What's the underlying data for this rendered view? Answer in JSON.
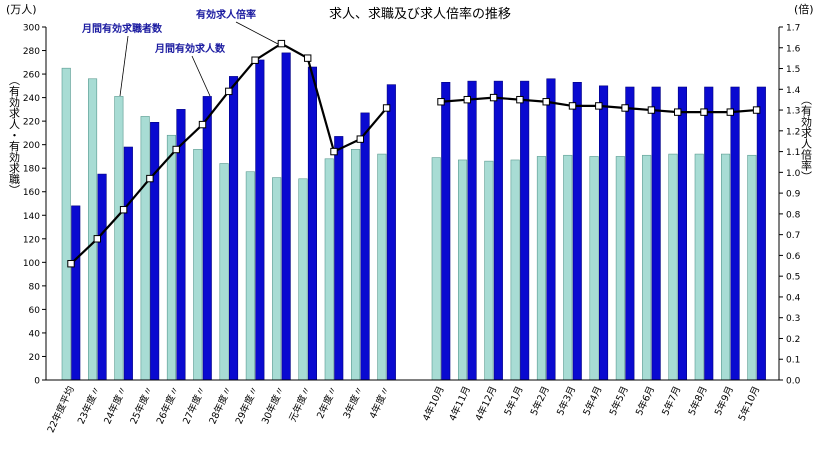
{
  "chart_data": {
    "type": "bar",
    "title": "求人、求職及び求人倍率の推移",
    "left_unit": "(万人)",
    "right_unit": "(倍)",
    "ylabel_left": "（有効求人・有効求職）",
    "ylabel_right": "（有効求人倍率）",
    "ylim_left": [
      0,
      300
    ],
    "ylim_right": [
      0.0,
      1.7
    ],
    "left_ticks": [
      "0",
      "20",
      "40",
      "60",
      "80",
      "100",
      "120",
      "140",
      "160",
      "180",
      "200",
      "220",
      "240",
      "260",
      "280",
      "300"
    ],
    "right_ticks": [
      "0.0",
      "0.1",
      "0.2",
      "0.3",
      "0.4",
      "0.5",
      "0.6",
      "0.7",
      "0.8",
      "0.9",
      "1.0",
      "1.1",
      "1.2",
      "1.3",
      "1.4",
      "1.5",
      "1.6",
      "1.7"
    ],
    "categories": [
      "22年度平均",
      "23年度〃",
      "24年度〃",
      "25年度〃",
      "26年度〃",
      "27年度〃",
      "28年度〃",
      "29年度〃",
      "30年度〃",
      "元年度〃",
      "2年度〃",
      "3年度〃",
      "4年度〃",
      "4年10月",
      "4年11月",
      "4年12月",
      "5年1月",
      "5年2月",
      "5年3月",
      "5年4月",
      "5年5月",
      "5年6月",
      "5年7月",
      "5年8月",
      "5年9月",
      "5年10月"
    ],
    "series": [
      {
        "name": "月間有効求職者数",
        "axis": "left",
        "color": "#a8dcd4",
        "values": [
          265,
          256,
          241,
          224,
          208,
          196,
          184,
          177,
          172,
          171,
          188,
          196,
          192,
          189,
          187,
          186,
          187,
          190,
          191,
          190,
          190,
          191,
          192,
          192,
          192,
          191
        ]
      },
      {
        "name": "月間有効求人数",
        "axis": "left",
        "color": "#0a0ad0",
        "values": [
          148,
          175,
          198,
          219,
          230,
          241,
          258,
          272,
          278,
          266,
          207,
          227,
          251,
          253,
          254,
          254,
          254,
          256,
          253,
          250,
          249,
          249,
          249,
          249,
          249,
          249
        ]
      },
      {
        "name": "有効求人倍率",
        "axis": "right",
        "type": "line",
        "color": "#000000",
        "values": [
          0.56,
          0.68,
          0.82,
          0.97,
          1.11,
          1.23,
          1.39,
          1.54,
          1.62,
          1.55,
          1.1,
          1.16,
          1.31,
          1.34,
          1.35,
          1.36,
          1.35,
          1.34,
          1.32,
          1.32,
          1.31,
          1.3,
          1.29,
          1.29,
          1.29,
          1.3
        ]
      }
    ]
  }
}
